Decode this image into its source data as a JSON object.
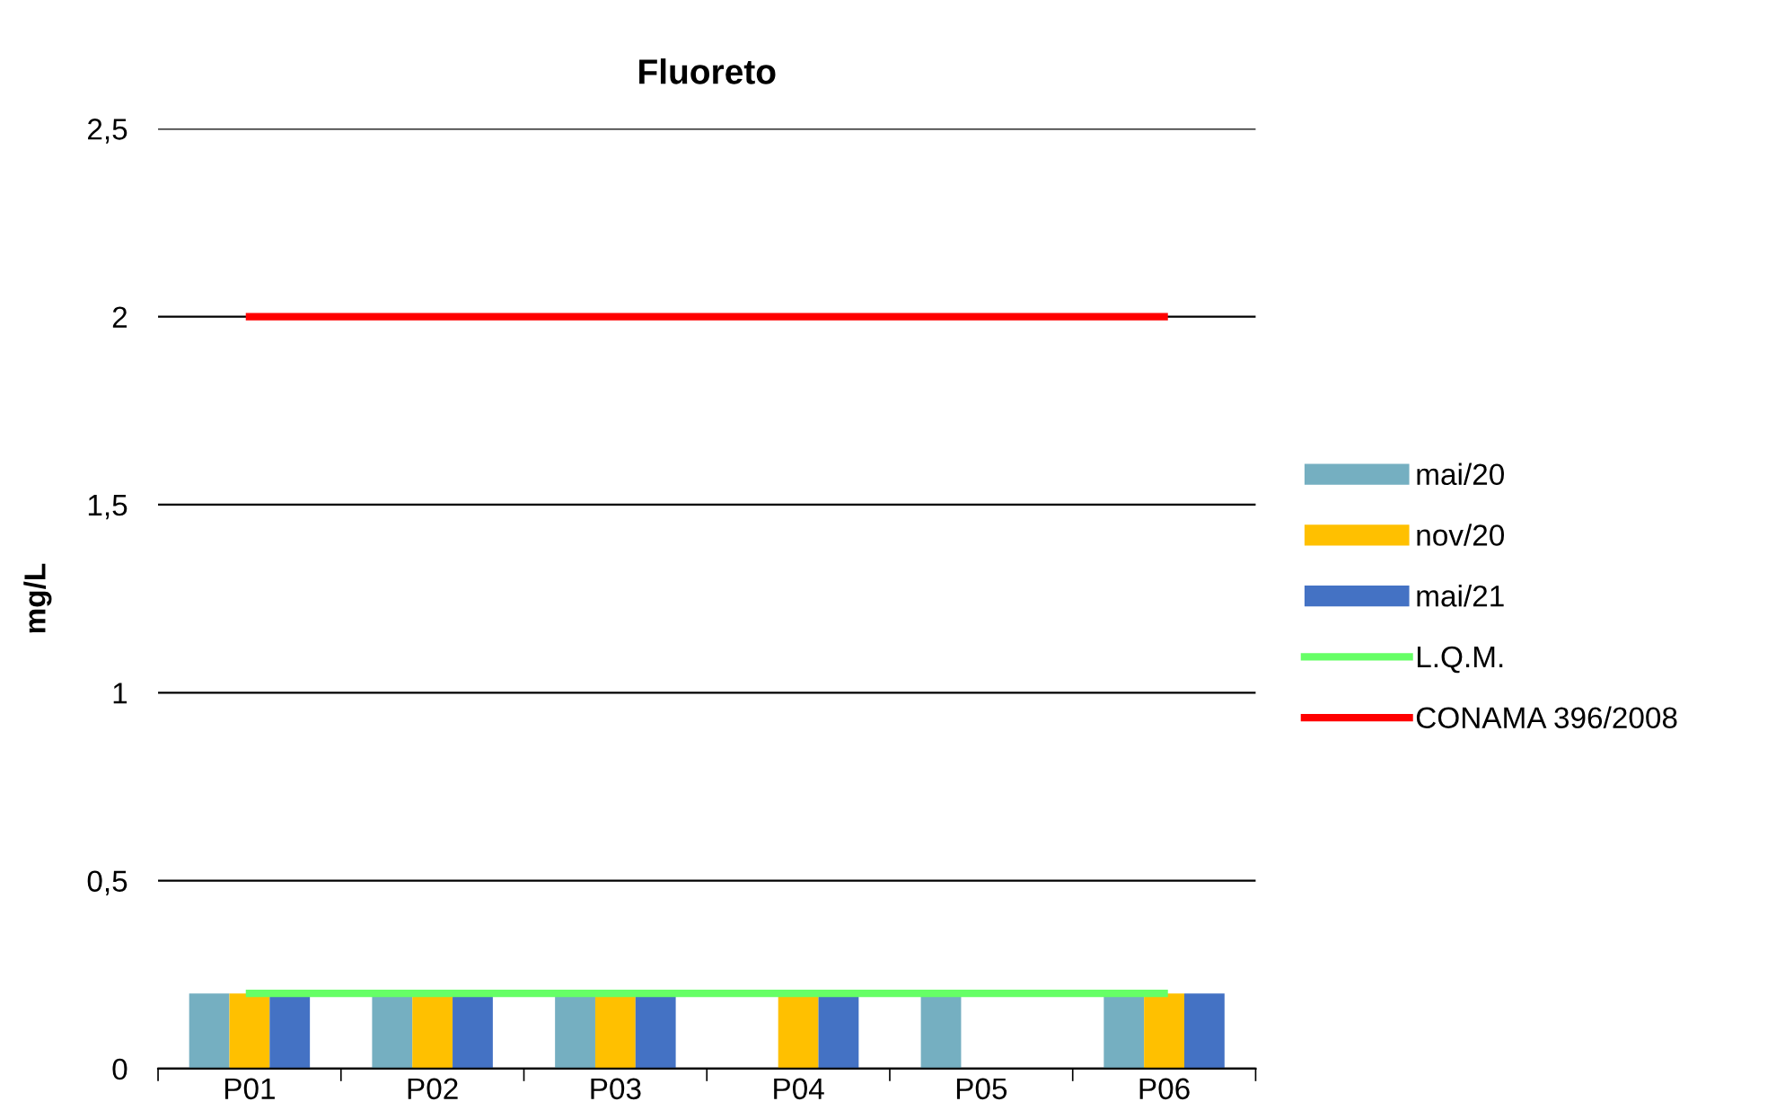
{
  "chart_data": {
    "type": "bar",
    "title": "Fluoreto",
    "ylabel": "mg/L",
    "categories": [
      "P01",
      "P02",
      "P03",
      "P04",
      "P05",
      "P06"
    ],
    "series": [
      {
        "name": "mai/20",
        "color": "#75afc1",
        "values": [
          0.2,
          0.2,
          0.2,
          null,
          0.2,
          0.2
        ]
      },
      {
        "name": "nov/20",
        "color": "#ffc000",
        "values": [
          0.2,
          0.2,
          0.2,
          0.2,
          null,
          0.2
        ]
      },
      {
        "name": "mai/21",
        "color": "#4472c4",
        "values": [
          0.2,
          0.2,
          0.2,
          0.2,
          null,
          0.2
        ]
      },
      {
        "name": "L.Q.M.",
        "type": "line",
        "color": "#66ff66",
        "values": [
          0.2,
          0.2,
          0.2,
          0.2,
          0.2,
          0.2
        ]
      },
      {
        "name": "CONAMA 396/2008",
        "type": "line",
        "color": "#ff0000",
        "values": [
          2,
          2,
          2,
          2,
          2,
          2
        ]
      }
    ],
    "ylim": [
      0,
      2.5
    ],
    "yticks": [
      0,
      {
        "value": 0.5,
        "label": "0,5"
      },
      1,
      {
        "value": 1.5,
        "label": "1,5"
      },
      2,
      {
        "value": 2.5,
        "label": "2,5"
      }
    ],
    "grid": "y",
    "legend": "right",
    "marker": "none",
    "line_style": "solid"
  }
}
